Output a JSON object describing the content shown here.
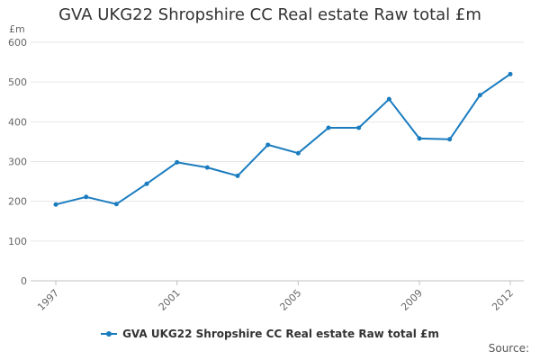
{
  "chart_data": {
    "type": "line",
    "title": "GVA UKG22 Shropshire CC Real estate Raw total £m",
    "ylabel": "£m",
    "xlabel": "",
    "x": [
      1997,
      1998,
      1999,
      2000,
      2001,
      2002,
      2003,
      2004,
      2005,
      2006,
      2007,
      2008,
      2009,
      2010,
      2011,
      2012
    ],
    "x_tick_labels": [
      "1997",
      "2001",
      "2005",
      "2009",
      "2012"
    ],
    "y_tick_labels": [
      "0",
      "100",
      "200",
      "300",
      "400",
      "500",
      "600"
    ],
    "ylim": [
      0,
      600
    ],
    "grid": "horizontal",
    "legend_position": "bottom",
    "series": [
      {
        "name": "GVA UKG22 Shropshire CC Real estate Raw total £m",
        "color": "#1a7cbf",
        "values": [
          192,
          211,
          193,
          244,
          298,
          285,
          264,
          342,
          321,
          385,
          385,
          457,
          358,
          356,
          467,
          520
        ]
      }
    ]
  },
  "source_label": "Source:"
}
